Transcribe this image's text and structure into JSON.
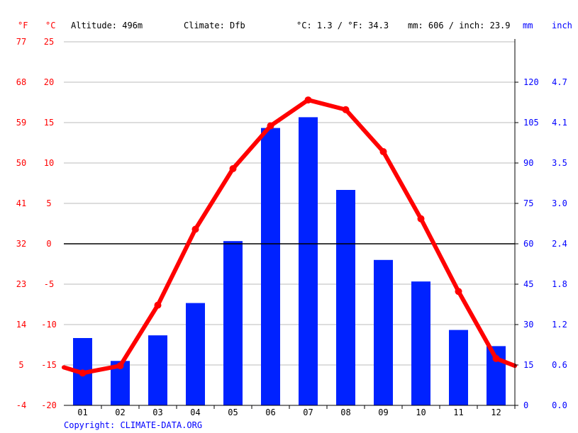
{
  "header": {
    "unit_f": "°F",
    "unit_c": "°C",
    "altitude": "Altitude: 496m",
    "climate": "Climate: Dfb",
    "avg_temp": "°C: 1.3 / °F: 34.3",
    "precip_total": "mm: 606 / inch: 23.9",
    "unit_mm": "mm",
    "unit_inch": "inch"
  },
  "footer": {
    "copyright": "Copyright: CLIMATE-DATA.ORG"
  },
  "colors": {
    "temperature": "#ff0000",
    "precipitation": "#0022ff",
    "axis_left": "#ff0000",
    "axis_right": "#0000ff",
    "grid": "#bbbbbb"
  },
  "chart_data": {
    "type": "bar",
    "categories": [
      "01",
      "02",
      "03",
      "04",
      "05",
      "06",
      "07",
      "08",
      "09",
      "10",
      "11",
      "12"
    ],
    "series": [
      {
        "type": "bar",
        "axis": "mm",
        "values": [
          25,
          16.5,
          26,
          38,
          61,
          103,
          107,
          80,
          54,
          46,
          28,
          22
        ]
      },
      {
        "type": "line",
        "axis": "°C",
        "values": [
          -16.0,
          -15.1,
          -7.6,
          1.8,
          9.3,
          14.6,
          17.8,
          16.6,
          11.4,
          3.1,
          -5.9,
          -14.2
        ]
      }
    ],
    "celsius_ticks": [
      "25",
      "20",
      "15",
      "10",
      "5",
      "0",
      "-5",
      "-10",
      "-15",
      "-20"
    ],
    "fahrenheit_ticks": [
      "77",
      "68",
      "59",
      "50",
      "41",
      "32",
      "23",
      "14",
      "5",
      "-4"
    ],
    "mm_ticks": [
      "120",
      "105",
      "90",
      "75",
      "60",
      "45",
      "30",
      "15",
      "0"
    ],
    "inch_ticks": [
      "4.7",
      "4.1",
      "3.5",
      "3.0",
      "2.4",
      "1.8",
      "1.2",
      "0.6",
      "0.0"
    ],
    "celsius_range": [
      -20,
      25
    ],
    "mm_range": [
      0,
      135
    ],
    "grid": true
  }
}
